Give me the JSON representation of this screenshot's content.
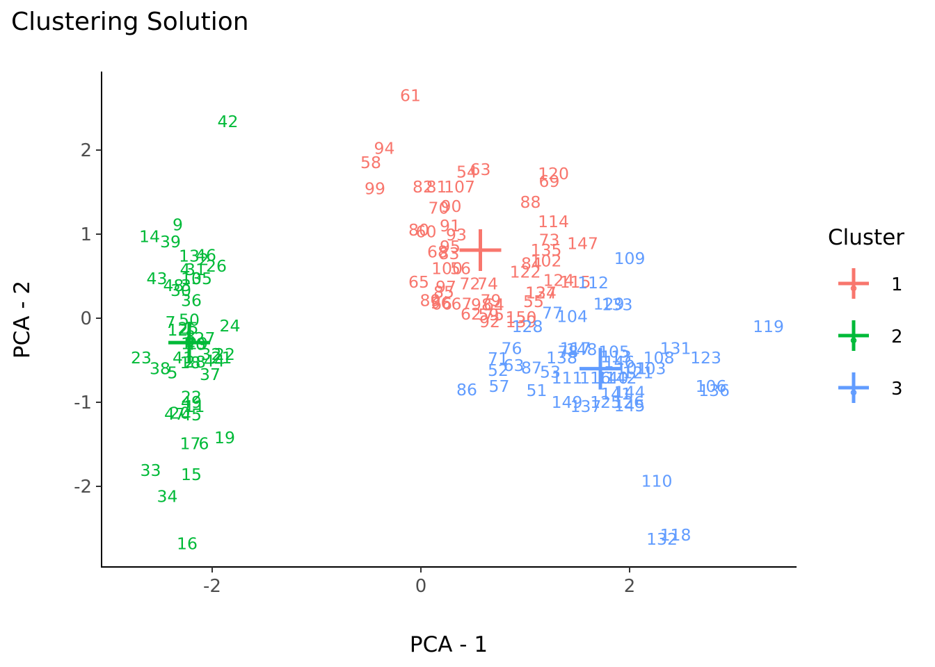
{
  "chart_data": {
    "type": "scatter",
    "title": "Clustering Solution",
    "xlabel": "PCA - 1",
    "ylabel": "PCA - 2",
    "xlim": [
      -3.0,
      3.6
    ],
    "ylim": [
      -2.95,
      2.95
    ],
    "xticks": [
      -2,
      0,
      2
    ],
    "yticks": [
      -2,
      -1,
      0,
      1,
      2
    ],
    "grid": false,
    "legend": {
      "title": "Cluster",
      "position": "right",
      "items": [
        {
          "label": "1",
          "color": "#F8766D"
        },
        {
          "label": "2",
          "color": "#00BA38"
        },
        {
          "label": "3",
          "color": "#619CFF"
        }
      ]
    },
    "centroids": [
      {
        "cluster": "1",
        "x": 0.57,
        "y": 0.81
      },
      {
        "cluster": "2",
        "x": -2.22,
        "y": -0.29
      },
      {
        "cluster": "3",
        "x": 1.72,
        "y": -0.6
      }
    ],
    "series": [
      {
        "name": "1",
        "color": "#F8766D",
        "points": [
          {
            "label": "61",
            "x": -0.1,
            "y": 2.65
          },
          {
            "label": "94",
            "x": -0.35,
            "y": 2.02
          },
          {
            "label": "58",
            "x": -0.48,
            "y": 1.85
          },
          {
            "label": "54",
            "x": 0.44,
            "y": 1.74
          },
          {
            "label": "63",
            "x": 0.57,
            "y": 1.77
          },
          {
            "label": "120",
            "x": 1.27,
            "y": 1.72
          },
          {
            "label": "69",
            "x": 1.23,
            "y": 1.63
          },
          {
            "label": "99",
            "x": -0.44,
            "y": 1.54
          },
          {
            "label": "82",
            "x": 0.02,
            "y": 1.56
          },
          {
            "label": "81",
            "x": 0.15,
            "y": 1.56
          },
          {
            "label": "107",
            "x": 0.37,
            "y": 1.56
          },
          {
            "label": "88",
            "x": 1.05,
            "y": 1.38
          },
          {
            "label": "70",
            "x": 0.17,
            "y": 1.31
          },
          {
            "label": "90",
            "x": 0.29,
            "y": 1.33
          },
          {
            "label": "114",
            "x": 1.27,
            "y": 1.15
          },
          {
            "label": "91",
            "x": 0.28,
            "y": 1.1
          },
          {
            "label": "80",
            "x": -0.02,
            "y": 1.05
          },
          {
            "label": "60",
            "x": 0.05,
            "y": 1.03
          },
          {
            "label": "93",
            "x": 0.34,
            "y": 0.99
          },
          {
            "label": "73",
            "x": 1.23,
            "y": 0.93
          },
          {
            "label": "147",
            "x": 1.55,
            "y": 0.89
          },
          {
            "label": "95",
            "x": 0.28,
            "y": 0.85
          },
          {
            "label": "68",
            "x": 0.16,
            "y": 0.79
          },
          {
            "label": "83",
            "x": 0.27,
            "y": 0.77
          },
          {
            "label": "135",
            "x": 1.2,
            "y": 0.81
          },
          {
            "label": "102",
            "x": 1.2,
            "y": 0.68
          },
          {
            "label": "84",
            "x": 1.06,
            "y": 0.65
          },
          {
            "label": "122",
            "x": 1.0,
            "y": 0.55
          },
          {
            "label": "100",
            "x": 0.25,
            "y": 0.59
          },
          {
            "label": "56",
            "x": 0.38,
            "y": 0.59
          },
          {
            "label": "124",
            "x": 1.32,
            "y": 0.45
          },
          {
            "label": "115",
            "x": 1.48,
            "y": 0.43
          },
          {
            "label": "65",
            "x": -0.02,
            "y": 0.43
          },
          {
            "label": "72",
            "x": 0.47,
            "y": 0.41
          },
          {
            "label": "74",
            "x": 0.64,
            "y": 0.41
          },
          {
            "label": "97",
            "x": 0.24,
            "y": 0.37
          },
          {
            "label": "85",
            "x": 0.22,
            "y": 0.31
          },
          {
            "label": "134",
            "x": 1.15,
            "y": 0.3
          },
          {
            "label": "127",
            "x": 1.15,
            "y": 0.3
          },
          {
            "label": "55",
            "x": 1.08,
            "y": 0.2
          },
          {
            "label": "79",
            "x": 0.67,
            "y": 0.21
          },
          {
            "label": "89",
            "x": 0.09,
            "y": 0.21
          },
          {
            "label": "96",
            "x": 0.19,
            "y": 0.18
          },
          {
            "label": "66",
            "x": 0.2,
            "y": 0.17
          },
          {
            "label": "67",
            "x": 0.39,
            "y": 0.17
          },
          {
            "label": "98",
            "x": 0.58,
            "y": 0.16
          },
          {
            "label": "64",
            "x": 0.7,
            "y": 0.16
          },
          {
            "label": "62",
            "x": 0.48,
            "y": 0.05
          },
          {
            "label": "59",
            "x": 0.65,
            "y": 0.04
          },
          {
            "label": "75",
            "x": 0.7,
            "y": 0.04
          },
          {
            "label": "92",
            "x": 0.66,
            "y": -0.04
          },
          {
            "label": "150",
            "x": 0.96,
            "y": 0.01
          },
          {
            "label": "139",
            "x": 0.96,
            "y": -0.04
          }
        ]
      },
      {
        "name": "2",
        "color": "#00BA38",
        "points": [
          {
            "label": "42",
            "x": -1.85,
            "y": 2.34
          },
          {
            "label": "9",
            "x": -2.33,
            "y": 1.11
          },
          {
            "label": "14",
            "x": -2.6,
            "y": 0.97
          },
          {
            "label": "39",
            "x": -2.4,
            "y": 0.91
          },
          {
            "label": "13",
            "x": -2.22,
            "y": 0.74
          },
          {
            "label": "46",
            "x": -2.06,
            "y": 0.75
          },
          {
            "label": "2",
            "x": -2.08,
            "y": 0.7
          },
          {
            "label": "26",
            "x": -1.96,
            "y": 0.62
          },
          {
            "label": "4",
            "x": -2.26,
            "y": 0.58
          },
          {
            "label": "31",
            "x": -2.16,
            "y": 0.58
          },
          {
            "label": "43",
            "x": -2.53,
            "y": 0.47
          },
          {
            "label": "10",
            "x": -2.2,
            "y": 0.47
          },
          {
            "label": "35",
            "x": -2.1,
            "y": 0.47
          },
          {
            "label": "48",
            "x": -2.37,
            "y": 0.39
          },
          {
            "label": "3",
            "x": -2.25,
            "y": 0.39
          },
          {
            "label": "30",
            "x": -2.3,
            "y": 0.33
          },
          {
            "label": "36",
            "x": -2.2,
            "y": 0.21
          },
          {
            "label": "7",
            "x": -2.4,
            "y": -0.05
          },
          {
            "label": "50",
            "x": -2.22,
            "y": -0.02
          },
          {
            "label": "24",
            "x": -1.83,
            "y": -0.09
          },
          {
            "label": "12",
            "x": -2.33,
            "y": -0.14
          },
          {
            "label": "25",
            "x": -2.23,
            "y": -0.12
          },
          {
            "label": "8",
            "x": -2.21,
            "y": -0.22
          },
          {
            "label": "27",
            "x": -2.07,
            "y": -0.24
          },
          {
            "label": "1",
            "x": -2.25,
            "y": -0.3
          },
          {
            "label": "29",
            "x": -2.14,
            "y": -0.3
          },
          {
            "label": "40",
            "x": -2.16,
            "y": -0.31
          },
          {
            "label": "23",
            "x": -2.68,
            "y": -0.47
          },
          {
            "label": "41",
            "x": -2.28,
            "y": -0.47
          },
          {
            "label": "32",
            "x": -2.01,
            "y": -0.43
          },
          {
            "label": "22",
            "x": -1.88,
            "y": -0.43
          },
          {
            "label": "18",
            "x": -2.21,
            "y": -0.53
          },
          {
            "label": "28",
            "x": -2.16,
            "y": -0.52
          },
          {
            "label": "44",
            "x": -1.98,
            "y": -0.51
          },
          {
            "label": "21",
            "x": -1.91,
            "y": -0.47
          },
          {
            "label": "38",
            "x": -2.5,
            "y": -0.6
          },
          {
            "label": "5",
            "x": -2.38,
            "y": -0.65
          },
          {
            "label": "37",
            "x": -2.02,
            "y": -0.67
          },
          {
            "label": "22",
            "x": -2.2,
            "y": -0.94
          },
          {
            "label": "49",
            "x": -2.2,
            "y": -1.0
          },
          {
            "label": "11",
            "x": -2.17,
            "y": -1.05
          },
          {
            "label": "47",
            "x": -2.36,
            "y": -1.14
          },
          {
            "label": "20",
            "x": -2.31,
            "y": -1.13
          },
          {
            "label": "45",
            "x": -2.2,
            "y": -1.15
          },
          {
            "label": "17",
            "x": -2.21,
            "y": -1.49
          },
          {
            "label": "6",
            "x": -2.08,
            "y": -1.49
          },
          {
            "label": "19",
            "x": -1.88,
            "y": -1.42
          },
          {
            "label": "33",
            "x": -2.59,
            "y": -1.81
          },
          {
            "label": "15",
            "x": -2.2,
            "y": -1.86
          },
          {
            "label": "34",
            "x": -2.43,
            "y": -2.12
          },
          {
            "label": "16",
            "x": -2.24,
            "y": -2.68
          }
        ]
      },
      {
        "name": "3",
        "color": "#619CFF",
        "points": [
          {
            "label": "109",
            "x": 2.0,
            "y": 0.71
          },
          {
            "label": "112",
            "x": 1.65,
            "y": 0.42
          },
          {
            "label": "129",
            "x": 1.8,
            "y": 0.17
          },
          {
            "label": "133",
            "x": 1.88,
            "y": 0.16
          },
          {
            "label": "104",
            "x": 1.45,
            "y": 0.02
          },
          {
            "label": "77",
            "x": 1.26,
            "y": 0.06
          },
          {
            "label": "128",
            "x": 1.02,
            "y": -0.1
          },
          {
            "label": "119",
            "x": 3.33,
            "y": -0.1
          },
          {
            "label": "76",
            "x": 0.87,
            "y": -0.36
          },
          {
            "label": "117",
            "x": 1.48,
            "y": -0.36
          },
          {
            "label": "148",
            "x": 1.54,
            "y": -0.37
          },
          {
            "label": "78",
            "x": 1.41,
            "y": -0.4
          },
          {
            "label": "105",
            "x": 1.85,
            "y": -0.4
          },
          {
            "label": "131",
            "x": 2.44,
            "y": -0.36
          },
          {
            "label": "113",
            "x": 1.87,
            "y": -0.46
          },
          {
            "label": "108",
            "x": 2.28,
            "y": -0.47
          },
          {
            "label": "123",
            "x": 2.73,
            "y": -0.47
          },
          {
            "label": "138",
            "x": 1.35,
            "y": -0.47
          },
          {
            "label": "71",
            "x": 0.74,
            "y": -0.48
          },
          {
            "label": "146",
            "x": 1.9,
            "y": -0.52
          },
          {
            "label": "63",
            "x": 0.89,
            "y": -0.56
          },
          {
            "label": "87",
            "x": 1.06,
            "y": -0.59
          },
          {
            "label": "101",
            "x": 2.02,
            "y": -0.6
          },
          {
            "label": "103",
            "x": 2.2,
            "y": -0.6
          },
          {
            "label": "52",
            "x": 0.74,
            "y": -0.62
          },
          {
            "label": "53",
            "x": 1.24,
            "y": -0.64
          },
          {
            "label": "111",
            "x": 1.4,
            "y": -0.71
          },
          {
            "label": "116",
            "x": 1.67,
            "y": -0.71
          },
          {
            "label": "140",
            "x": 1.84,
            "y": -0.71
          },
          {
            "label": "142",
            "x": 1.92,
            "y": -0.71
          },
          {
            "label": "121",
            "x": 2.08,
            "y": -0.65
          },
          {
            "label": "57",
            "x": 0.75,
            "y": -0.81
          },
          {
            "label": "86",
            "x": 0.44,
            "y": -0.85
          },
          {
            "label": "51",
            "x": 1.11,
            "y": -0.86
          },
          {
            "label": "106",
            "x": 2.78,
            "y": -0.81
          },
          {
            "label": "136",
            "x": 2.81,
            "y": -0.86
          },
          {
            "label": "144",
            "x": 2.0,
            "y": -0.88
          },
          {
            "label": "141",
            "x": 1.87,
            "y": -0.9
          },
          {
            "label": "149",
            "x": 1.4,
            "y": -1.0
          },
          {
            "label": "137",
            "x": 1.58,
            "y": -1.05
          },
          {
            "label": "125",
            "x": 1.77,
            "y": -1.0
          },
          {
            "label": "126",
            "x": 1.99,
            "y": -1.0
          },
          {
            "label": "145",
            "x": 2.0,
            "y": -1.04
          },
          {
            "label": "110",
            "x": 2.26,
            "y": -1.94
          },
          {
            "label": "118",
            "x": 2.44,
            "y": -2.58
          },
          {
            "label": "132",
            "x": 2.31,
            "y": -2.63
          }
        ]
      }
    ]
  }
}
